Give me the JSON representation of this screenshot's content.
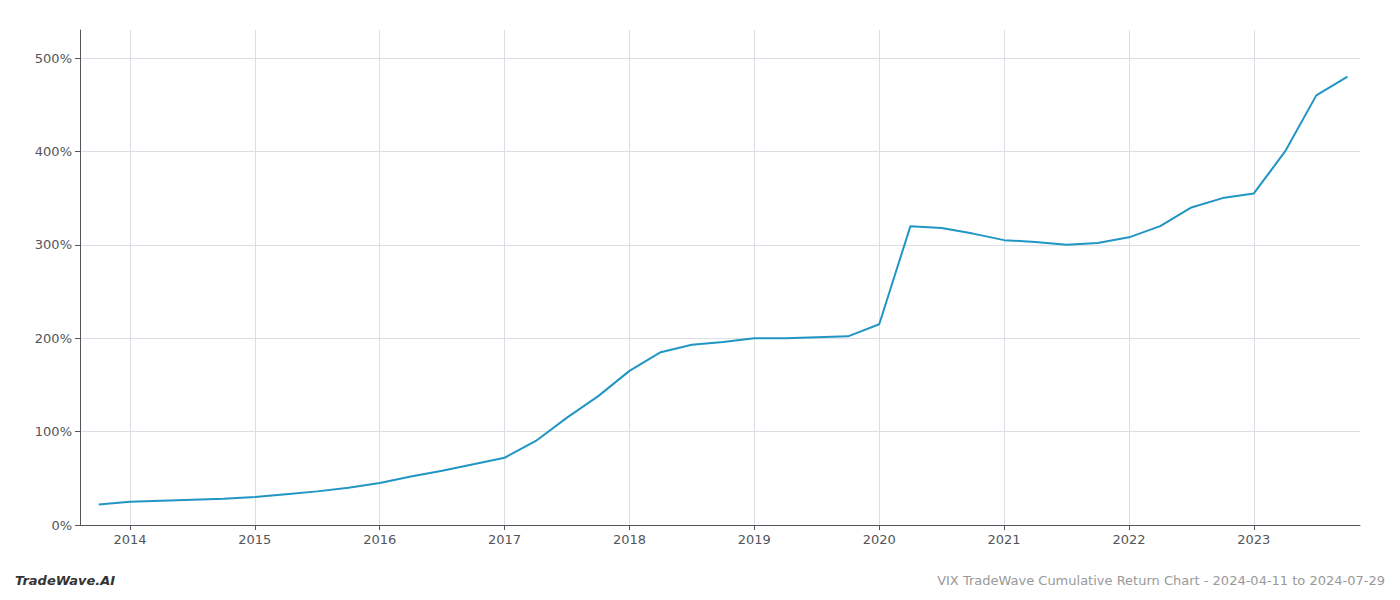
{
  "chart_data": {
    "type": "line",
    "title": "VIX TradeWave Cumulative Return Chart - 2024-04-11 to 2024-07-29",
    "annotations": [
      "TradeWave.AI"
    ],
    "x": [
      2013.75,
      2014.0,
      2014.25,
      2014.5,
      2014.75,
      2015.0,
      2015.25,
      2015.5,
      2015.75,
      2016.0,
      2016.25,
      2016.5,
      2016.75,
      2017.0,
      2017.25,
      2017.5,
      2017.75,
      2018.0,
      2018.25,
      2018.5,
      2018.75,
      2019.0,
      2019.25,
      2019.5,
      2019.75,
      2020.0,
      2020.25,
      2020.5,
      2020.75,
      2021.0,
      2021.25,
      2021.5,
      2021.75,
      2022.0,
      2022.25,
      2022.5,
      2022.75,
      2023.0,
      2023.25,
      2023.5,
      2023.75
    ],
    "values": [
      22,
      25,
      26,
      27,
      28,
      30,
      33,
      36,
      40,
      45,
      52,
      58,
      65,
      72,
      90,
      115,
      138,
      165,
      185,
      193,
      196,
      200,
      200,
      201,
      202,
      215,
      320,
      318,
      312,
      305,
      303,
      300,
      302,
      308,
      320,
      340,
      350,
      355,
      400,
      460,
      480
    ],
    "color": "#2196c4",
    "xlim": [
      2013.6,
      2023.85
    ],
    "xticks": [
      2014,
      2015,
      2016,
      2017,
      2018,
      2019,
      2020,
      2021,
      2022,
      2023
    ],
    "ylim": [
      0,
      530
    ],
    "yticks": [
      {
        "value": 0,
        "label": "0%"
      },
      {
        "value": 100,
        "label": "100%"
      },
      {
        "value": 200,
        "label": "200%"
      },
      {
        "value": 300,
        "label": "300%"
      },
      {
        "value": 400,
        "label": "400%"
      },
      {
        "value": 500,
        "label": "500%"
      }
    ],
    "grid": true
  }
}
